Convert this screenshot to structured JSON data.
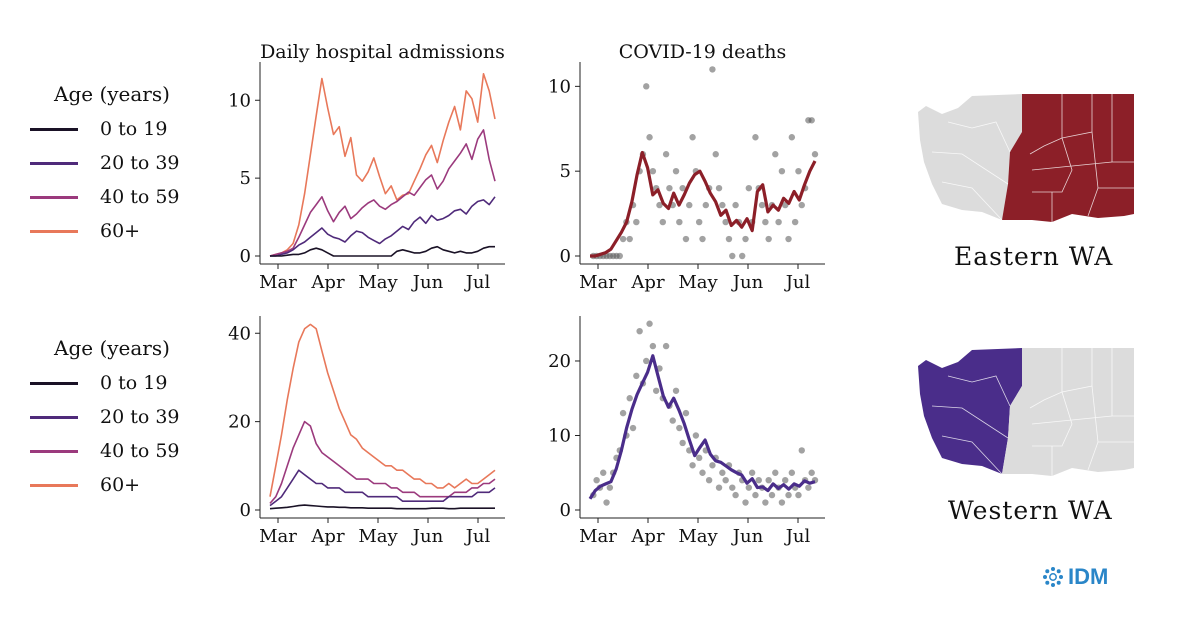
{
  "legend_top": {
    "title": "Age (years)",
    "items": [
      {
        "label": "0 to 19",
        "color": "#1a1226"
      },
      {
        "label": "20 to 39",
        "color": "#4f2a7a"
      },
      {
        "label": "40 to 59",
        "color": "#9b3a7d"
      },
      {
        "label": "60+",
        "color": "#e8785a"
      }
    ]
  },
  "legend_bottom": {
    "title": "Age (years)",
    "items": [
      {
        "label": "0 to 19",
        "color": "#1a1226"
      },
      {
        "label": "20 to 39",
        "color": "#4f2a7a"
      },
      {
        "label": "40 to 59",
        "color": "#9b3a7d"
      },
      {
        "label": "60+",
        "color": "#e8785a"
      }
    ]
  },
  "maps": {
    "east": {
      "caption": "Eastern WA",
      "highlight_color": "#8c1f28",
      "base_color": "#dcdcdc"
    },
    "west": {
      "caption": "Western WA",
      "highlight_color": "#4a2d8a",
      "base_color": "#dcdcdc"
    }
  },
  "logo_text": "IDM",
  "chart_data": [
    {
      "id": "east-admissions",
      "type": "line",
      "title": "Daily hospital admissions",
      "xlabel": "",
      "ylabel": "",
      "x_ticks": [
        "Mar",
        "Apr",
        "May",
        "Jun",
        "Jul"
      ],
      "y_ticks": [
        0,
        5,
        10
      ],
      "ylim": [
        0,
        12.2
      ],
      "xlim": [
        0,
        136
      ],
      "grid": false,
      "series": [
        {
          "color": "#e8785a",
          "values": [
            0,
            0.1,
            0.2,
            0.4,
            0.8,
            2.0,
            4.0,
            6.5,
            9.0,
            11.4,
            9.5,
            7.8,
            8.3,
            6.4,
            7.6,
            5.2,
            4.8,
            5.4,
            6.3,
            5.1,
            4.0,
            4.5,
            3.6,
            3.9,
            4.0,
            4.8,
            5.6,
            6.5,
            7.1,
            6.0,
            7.4,
            8.6,
            9.6,
            8.1,
            10.6,
            10.1,
            8.6,
            11.7,
            10.6,
            8.8
          ]
        },
        {
          "color": "#9b3a7d",
          "values": [
            0,
            0.1,
            0.2,
            0.3,
            0.5,
            1.2,
            2.0,
            2.8,
            3.3,
            3.8,
            2.9,
            2.2,
            2.8,
            3.2,
            2.4,
            2.7,
            3.1,
            3.4,
            3.6,
            3.2,
            3.0,
            3.3,
            3.5,
            3.8,
            4.1,
            3.9,
            4.4,
            4.9,
            5.2,
            4.3,
            4.8,
            5.6,
            6.1,
            6.6,
            7.2,
            6.2,
            7.5,
            8.1,
            6.2,
            4.8
          ]
        },
        {
          "color": "#4f2a7a",
          "values": [
            0,
            0,
            0.1,
            0.2,
            0.4,
            0.7,
            0.9,
            1.2,
            1.5,
            1.8,
            1.4,
            1.2,
            1.1,
            0.9,
            1.3,
            1.6,
            1.5,
            1.2,
            1.0,
            0.8,
            1.1,
            1.3,
            1.6,
            1.9,
            1.7,
            2.2,
            2.5,
            2.1,
            2.6,
            2.3,
            2.4,
            2.6,
            2.9,
            3.0,
            2.7,
            3.2,
            3.5,
            3.6,
            3.3,
            3.8
          ]
        },
        {
          "color": "#1a1226",
          "values": [
            0,
            0,
            0,
            0.05,
            0.1,
            0.1,
            0.2,
            0.4,
            0.5,
            0.4,
            0.2,
            0,
            0,
            0,
            0,
            0,
            0,
            0,
            0,
            0,
            0,
            0,
            0.3,
            0.4,
            0.3,
            0.2,
            0.2,
            0.3,
            0.5,
            0.6,
            0.4,
            0.3,
            0.2,
            0.3,
            0.2,
            0.2,
            0.3,
            0.5,
            0.6,
            0.6
          ]
        }
      ]
    },
    {
      "id": "east-deaths",
      "type": "scatter",
      "title": "COVID-19 deaths",
      "xlabel": "",
      "ylabel": "",
      "x_ticks": [
        "Mar",
        "Apr",
        "May",
        "Jun",
        "Jul"
      ],
      "y_ticks": [
        0,
        5,
        10
      ],
      "ylim": [
        0,
        11.2
      ],
      "xlim": [
        0,
        136
      ],
      "grid": false,
      "points": [
        [
          2,
          0
        ],
        [
          4,
          0
        ],
        [
          6,
          0
        ],
        [
          8,
          0
        ],
        [
          10,
          0
        ],
        [
          12,
          0
        ],
        [
          14,
          0
        ],
        [
          16,
          0
        ],
        [
          18,
          0
        ],
        [
          20,
          1
        ],
        [
          22,
          2
        ],
        [
          24,
          1
        ],
        [
          26,
          3
        ],
        [
          28,
          2
        ],
        [
          30,
          5
        ],
        [
          32,
          6
        ],
        [
          34,
          10
        ],
        [
          36,
          7
        ],
        [
          38,
          5
        ],
        [
          40,
          4
        ],
        [
          42,
          3
        ],
        [
          44,
          2
        ],
        [
          46,
          6
        ],
        [
          48,
          4
        ],
        [
          50,
          3
        ],
        [
          52,
          5
        ],
        [
          54,
          2
        ],
        [
          56,
          4
        ],
        [
          58,
          1
        ],
        [
          60,
          3
        ],
        [
          62,
          7
        ],
        [
          64,
          5
        ],
        [
          66,
          2
        ],
        [
          68,
          1
        ],
        [
          70,
          3
        ],
        [
          72,
          4
        ],
        [
          74,
          11
        ],
        [
          76,
          6
        ],
        [
          78,
          4
        ],
        [
          80,
          3
        ],
        [
          82,
          2
        ],
        [
          84,
          1
        ],
        [
          86,
          0
        ],
        [
          88,
          3
        ],
        [
          90,
          2
        ],
        [
          92,
          0
        ],
        [
          94,
          1
        ],
        [
          96,
          4
        ],
        [
          98,
          2
        ],
        [
          100,
          7
        ],
        [
          102,
          4
        ],
        [
          104,
          3
        ],
        [
          106,
          2
        ],
        [
          108,
          1
        ],
        [
          110,
          3
        ],
        [
          112,
          6
        ],
        [
          114,
          2
        ],
        [
          116,
          5
        ],
        [
          118,
          3
        ],
        [
          120,
          1
        ],
        [
          122,
          7
        ],
        [
          124,
          2
        ],
        [
          126,
          5
        ],
        [
          128,
          3
        ],
        [
          130,
          4
        ],
        [
          132,
          8
        ],
        [
          134,
          8
        ],
        [
          136,
          6
        ]
      ],
      "series": [
        {
          "color": "#8c1f28",
          "values": [
            0,
            0,
            0.1,
            0.2,
            0.4,
            0.9,
            1.4,
            2.0,
            3.2,
            4.8,
            6.1,
            5.2,
            3.6,
            3.9,
            3.1,
            2.8,
            3.7,
            3.0,
            3.6,
            4.3,
            4.8,
            5.0,
            4.4,
            3.7,
            3.2,
            2.4,
            2.7,
            1.8,
            2.1,
            1.7,
            2.2,
            1.5,
            3.8,
            4.2,
            2.6,
            3.0,
            2.7,
            3.4,
            3.1,
            3.8,
            3.3,
            4.2,
            5.0,
            5.6
          ]
        }
      ]
    },
    {
      "id": "west-admissions",
      "type": "line",
      "title": "",
      "xlabel": "",
      "ylabel": "",
      "x_ticks": [
        "Mar",
        "Apr",
        "May",
        "Jun",
        "Jul"
      ],
      "y_ticks": [
        0,
        20,
        40
      ],
      "ylim": [
        0,
        43
      ],
      "xlim": [
        0,
        136
      ],
      "grid": false,
      "series": [
        {
          "color": "#e8785a",
          "values": [
            3,
            10,
            17,
            25,
            32,
            38,
            41,
            42,
            41,
            36,
            31,
            27,
            23,
            20,
            17,
            16,
            14,
            13,
            12,
            11,
            10,
            10,
            9,
            9,
            8,
            7,
            7,
            6,
            6,
            5,
            5,
            6,
            5,
            6,
            7,
            6,
            6,
            7,
            8,
            9
          ]
        },
        {
          "color": "#9b3a7d",
          "values": [
            1.5,
            3,
            6,
            10,
            14,
            17,
            20,
            19,
            15,
            13,
            12,
            11,
            10,
            9,
            8,
            7,
            7,
            7,
            6,
            6,
            6,
            5,
            5,
            4,
            4,
            4,
            3,
            3,
            3,
            3,
            3,
            3,
            4,
            4,
            4,
            5,
            5,
            6,
            6,
            7
          ]
        },
        {
          "color": "#4f2a7a",
          "values": [
            1,
            2,
            3,
            5,
            7,
            9,
            8,
            7,
            6,
            6,
            5,
            5,
            5,
            4,
            4,
            4,
            4,
            3,
            3,
            3,
            3,
            3,
            3,
            2,
            2,
            2,
            2,
            2,
            2,
            2,
            2,
            3,
            3,
            3,
            3,
            3,
            4,
            4,
            4,
            5
          ]
        },
        {
          "color": "#1a1226",
          "values": [
            0.3,
            0.4,
            0.5,
            0.6,
            0.8,
            1.0,
            1.1,
            1.0,
            0.9,
            0.8,
            0.7,
            0.7,
            0.6,
            0.6,
            0.5,
            0.5,
            0.5,
            0.4,
            0.4,
            0.4,
            0.4,
            0.4,
            0.3,
            0.3,
            0.3,
            0.3,
            0.3,
            0.3,
            0.4,
            0.4,
            0.4,
            0.3,
            0.3,
            0.4,
            0.4,
            0.4,
            0.4,
            0.4,
            0.4,
            0.4
          ]
        }
      ]
    },
    {
      "id": "west-deaths",
      "type": "scatter",
      "title": "",
      "xlabel": "",
      "ylabel": "",
      "x_ticks": [
        "Mar",
        "Apr",
        "May",
        "Jun",
        "Jul"
      ],
      "y_ticks": [
        0,
        10,
        20
      ],
      "ylim": [
        0,
        25.5
      ],
      "xlim": [
        0,
        136
      ],
      "grid": false,
      "points": [
        [
          2,
          2
        ],
        [
          4,
          4
        ],
        [
          6,
          3
        ],
        [
          8,
          5
        ],
        [
          10,
          1
        ],
        [
          12,
          3
        ],
        [
          14,
          5
        ],
        [
          16,
          7
        ],
        [
          18,
          8
        ],
        [
          20,
          13
        ],
        [
          22,
          10
        ],
        [
          24,
          15
        ],
        [
          26,
          11
        ],
        [
          28,
          18
        ],
        [
          30,
          24
        ],
        [
          32,
          17
        ],
        [
          34,
          20
        ],
        [
          36,
          25
        ],
        [
          38,
          22
        ],
        [
          40,
          16
        ],
        [
          42,
          19
        ],
        [
          44,
          15
        ],
        [
          46,
          22
        ],
        [
          48,
          14
        ],
        [
          50,
          12
        ],
        [
          52,
          16
        ],
        [
          54,
          11
        ],
        [
          56,
          9
        ],
        [
          58,
          13
        ],
        [
          60,
          8
        ],
        [
          62,
          6
        ],
        [
          64,
          10
        ],
        [
          66,
          7
        ],
        [
          68,
          5
        ],
        [
          70,
          8
        ],
        [
          72,
          4
        ],
        [
          74,
          6
        ],
        [
          76,
          7
        ],
        [
          78,
          3
        ],
        [
          80,
          5
        ],
        [
          82,
          4
        ],
        [
          84,
          6
        ],
        [
          86,
          3
        ],
        [
          88,
          2
        ],
        [
          90,
          5
        ],
        [
          92,
          4
        ],
        [
          94,
          1
        ],
        [
          96,
          3
        ],
        [
          98,
          5
        ],
        [
          100,
          2
        ],
        [
          102,
          4
        ],
        [
          104,
          3
        ],
        [
          106,
          1
        ],
        [
          108,
          4
        ],
        [
          110,
          2
        ],
        [
          112,
          5
        ],
        [
          114,
          3
        ],
        [
          116,
          1
        ],
        [
          118,
          4
        ],
        [
          120,
          2
        ],
        [
          122,
          5
        ],
        [
          124,
          3
        ],
        [
          126,
          2
        ],
        [
          128,
          8
        ],
        [
          130,
          4
        ],
        [
          132,
          3
        ],
        [
          134,
          5
        ],
        [
          136,
          4
        ]
      ],
      "series": [
        {
          "color": "#4a2d8a",
          "values": [
            1.5,
            2.6,
            3.2,
            3.5,
            3.8,
            5.5,
            8.0,
            11.0,
            13.5,
            15.5,
            17.0,
            18.5,
            20.7,
            18.0,
            15.3,
            13.8,
            15.0,
            13.4,
            11.6,
            9.4,
            7.3,
            8.4,
            9.4,
            7.5,
            6.6,
            6.4,
            5.9,
            5.4,
            5.0,
            4.7,
            3.6,
            4.2,
            3.0,
            3.1,
            2.6,
            3.5,
            2.9,
            3.4,
            2.8,
            3.5,
            3.2,
            3.9,
            3.6,
            3.8
          ]
        }
      ]
    }
  ]
}
